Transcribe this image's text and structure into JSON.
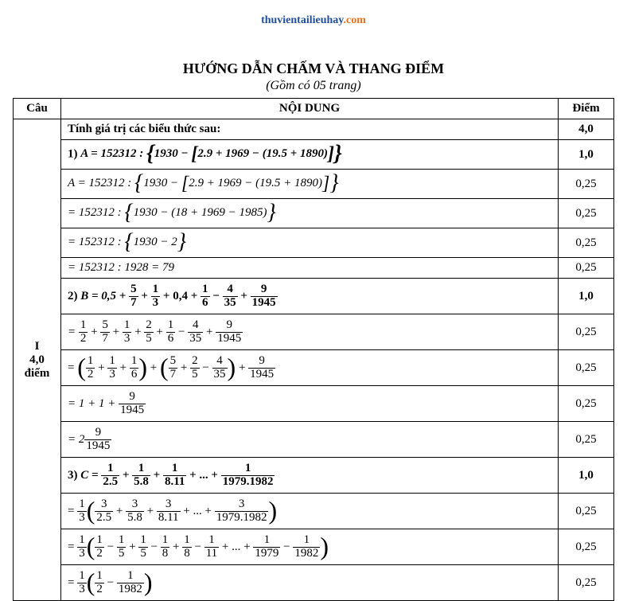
{
  "header": {
    "site_part1": "thuvientailieuhay",
    "site_part2": ".com",
    "color_blue": "#1f4e9c",
    "color_orange": "#e8701a"
  },
  "title": "HƯỚNG DẪN CHẤM VÀ THANG ĐIỂM",
  "subtitle": "(Gồm có 05 trang)",
  "columns": {
    "cau": "Câu",
    "noidung": "NỘI DUNG",
    "diem": "Điểm"
  },
  "question_label": "I",
  "question_points": "4,0",
  "question_points_word": "điểm",
  "rows": [
    {
      "id": "r0",
      "score": "4,0",
      "bold": true,
      "text": "Tính giá trị các biểu thức sau:"
    },
    {
      "id": "r1",
      "score": "1,0",
      "bold": true,
      "text_prefix": "1)   ",
      "math": "A = 152312 : {1930 − [2.9 + 1969 − (19.5 + 1890)]}",
      "show_curly_sq": true
    },
    {
      "id": "r2",
      "score": "0,25",
      "math": "A = 152312 : {1930 − [2.9 + 1969 − (19.5 + 1890)]}",
      "show_curly_sq": true
    },
    {
      "id": "r3",
      "score": "0,25",
      "math": "= 152312 : {1930 − (18 + 1969 − 1985)}",
      "show_curly_only": true
    },
    {
      "id": "r4",
      "score": "0,25",
      "math": "= 152312 : {1930 − 2}",
      "show_curly_only": true
    },
    {
      "id": "r5",
      "score": "0,25",
      "math": "= 152312 : 1928 = 79"
    },
    {
      "id": "r6",
      "score": "1,0",
      "bold": true,
      "text_prefix": "2)   ",
      "fraction_sum": {
        "lead": "B = 0,5 + ",
        "terms": [
          {
            "n": "5",
            "d": "7"
          },
          "plus",
          {
            "n": "1",
            "d": "3"
          },
          "text:+ 0,4 +",
          {
            "n": "1",
            "d": "6"
          },
          "minus",
          {
            "n": "4",
            "d": "35"
          },
          "plus",
          {
            "n": "9",
            "d": "1945"
          }
        ]
      }
    },
    {
      "id": "r7",
      "score": "0,25",
      "fraction_sum": {
        "lead": "= ",
        "terms": [
          {
            "n": "1",
            "d": "2"
          },
          "plus",
          {
            "n": "5",
            "d": "7"
          },
          "plus",
          {
            "n": "1",
            "d": "3"
          },
          "plus",
          {
            "n": "2",
            "d": "5"
          },
          "plus",
          {
            "n": "1",
            "d": "6"
          },
          "minus",
          {
            "n": "4",
            "d": "35"
          },
          "plus",
          {
            "n": "9",
            "d": "1945"
          }
        ]
      }
    },
    {
      "id": "r8",
      "score": "0,25",
      "paren_groups": {
        "lead": "= ",
        "group1": [
          {
            "n": "1",
            "d": "2"
          },
          "plus",
          {
            "n": "1",
            "d": "3"
          },
          "plus",
          {
            "n": "1",
            "d": "6"
          }
        ],
        "sep1": "+",
        "group2": [
          {
            "n": "5",
            "d": "7"
          },
          "plus",
          {
            "n": "2",
            "d": "5"
          },
          "minus",
          {
            "n": "4",
            "d": "35"
          }
        ],
        "sep2": "+",
        "tail": [
          {
            "n": "9",
            "d": "1945"
          }
        ]
      }
    },
    {
      "id": "r9",
      "score": "0,25",
      "fraction_sum": {
        "lead": "= 1 + 1 + ",
        "terms": [
          {
            "n": "9",
            "d": "1945"
          }
        ]
      }
    },
    {
      "id": "r10",
      "score": "0,25",
      "fraction_sum": {
        "lead": "= 2",
        "terms": [
          {
            "n": "9",
            "d": "1945"
          }
        ]
      }
    },
    {
      "id": "r11",
      "score": "1,0",
      "bold": true,
      "text_prefix": "3)   ",
      "fraction_sum": {
        "lead": "C = ",
        "terms": [
          {
            "n": "1",
            "d": "2.5"
          },
          "plus",
          {
            "n": "1",
            "d": "5.8"
          },
          "plus",
          {
            "n": "1",
            "d": "8.11"
          },
          "text:+ ... +",
          {
            "n": "1",
            "d": "1979.1982"
          }
        ]
      }
    },
    {
      "id": "r12",
      "score": "0,25",
      "factor_paren": {
        "lead": "= ",
        "factor": {
          "n": "1",
          "d": "3"
        },
        "inside": [
          {
            "n": "3",
            "d": "2.5"
          },
          "plus",
          {
            "n": "3",
            "d": "5.8"
          },
          "plus",
          {
            "n": "3",
            "d": "8.11"
          },
          "text:+ ... +",
          {
            "n": "3",
            "d": "1979.1982"
          }
        ]
      }
    },
    {
      "id": "r13",
      "score": "0,25",
      "factor_paren": {
        "lead": "= ",
        "factor": {
          "n": "1",
          "d": "3"
        },
        "inside": [
          {
            "n": "1",
            "d": "2"
          },
          "minus",
          {
            "n": "1",
            "d": "5"
          },
          "plus",
          {
            "n": "1",
            "d": "5"
          },
          "minus",
          {
            "n": "1",
            "d": "8"
          },
          "plus",
          {
            "n": "1",
            "d": "8"
          },
          "minus",
          {
            "n": "1",
            "d": "11"
          },
          "text:+ ... +",
          {
            "n": "1",
            "d": "1979"
          },
          "minus",
          {
            "n": "1",
            "d": "1982"
          }
        ]
      }
    },
    {
      "id": "r14",
      "score": "0,25",
      "factor_paren": {
        "lead": "= ",
        "factor": {
          "n": "1",
          "d": "3"
        },
        "inside": [
          {
            "n": "1",
            "d": "2"
          },
          "minus",
          {
            "n": "1",
            "d": "1982"
          }
        ]
      }
    }
  ]
}
